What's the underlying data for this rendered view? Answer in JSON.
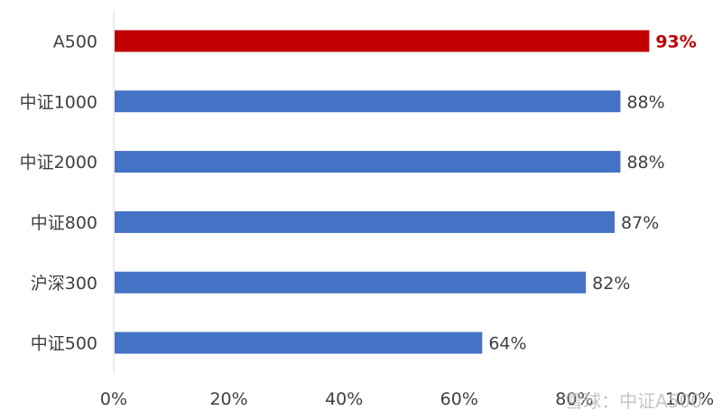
{
  "chart_data": {
    "type": "bar",
    "orientation": "horizontal",
    "categories": [
      "A500",
      "中证1000",
      "中证2000",
      "中证800",
      "沪深300",
      "中证500"
    ],
    "values": [
      93,
      88,
      88,
      87,
      82,
      64
    ],
    "value_suffix": "%",
    "x_ticks": [
      "0%",
      "20%",
      "40%",
      "60%",
      "80%",
      "100%"
    ],
    "xlim": [
      0,
      100
    ],
    "grid": false,
    "highlight_category": "A500",
    "colors": {
      "default": "#4472c4",
      "highlight": "#c00000"
    }
  },
  "watermark": "雪球：中证A500"
}
